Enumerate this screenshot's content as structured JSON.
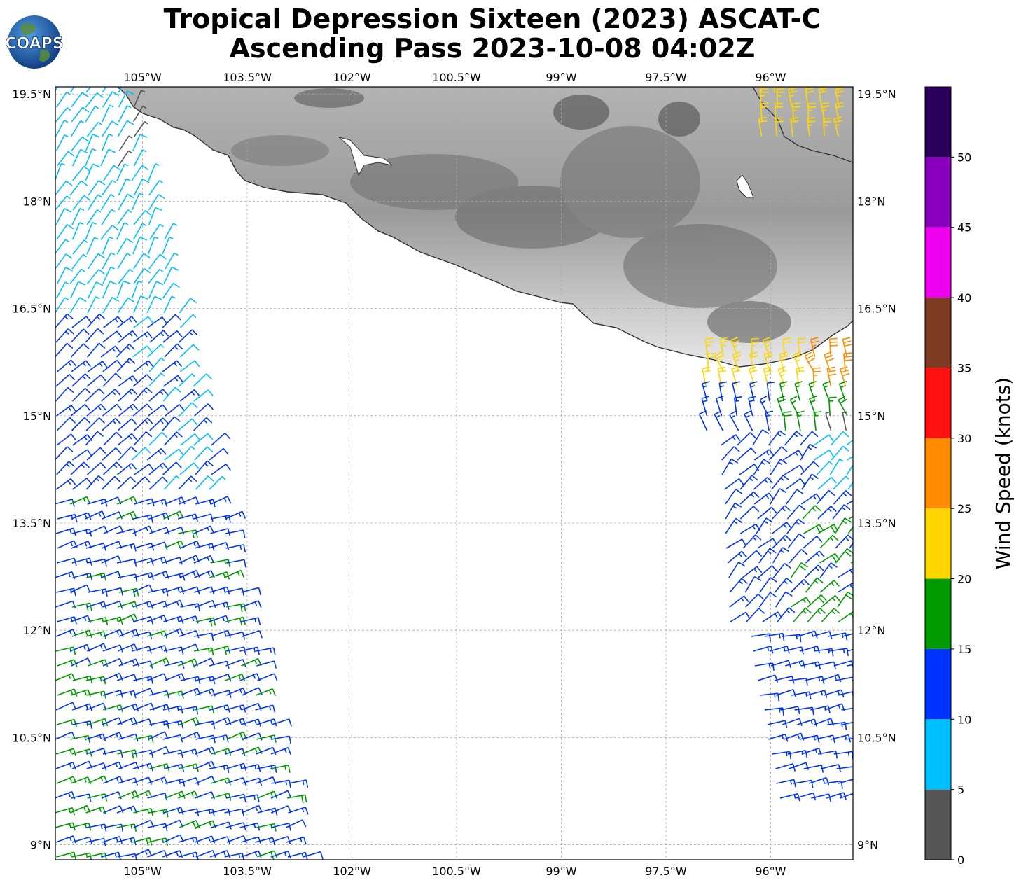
{
  "title": {
    "line1": "Tropical Depression Sixteen (2023) ASCAT-C",
    "line2": "Ascending Pass 2023-10-08 04:02Z"
  },
  "logo": {
    "text": "COAPS",
    "icon": "globe-logo-icon"
  },
  "map": {
    "lon_range": [
      -106.25,
      -94.82
    ],
    "lat_range": [
      8.79,
      19.6
    ],
    "lon_ticks": [
      {
        "value": -105,
        "label": "105°W"
      },
      {
        "value": -103.5,
        "label": "103.5°W"
      },
      {
        "value": -102,
        "label": "102°W"
      },
      {
        "value": -100.5,
        "label": "100.5°W"
      },
      {
        "value": -99,
        "label": "99°W"
      },
      {
        "value": -97.5,
        "label": "97.5°W"
      },
      {
        "value": -96,
        "label": "96°W"
      }
    ],
    "lat_ticks": [
      {
        "value": 19.5,
        "label": "19.5°N"
      },
      {
        "value": 18,
        "label": "18°N"
      },
      {
        "value": 16.5,
        "label": "16.5°N"
      },
      {
        "value": 15,
        "label": "15°N"
      },
      {
        "value": 13.5,
        "label": "13.5°N"
      },
      {
        "value": 12,
        "label": "12°N"
      },
      {
        "value": 10.5,
        "label": "10.5°N"
      },
      {
        "value": 9,
        "label": "9°N"
      }
    ],
    "grid": true,
    "land_color": "#d9d9d9",
    "coast_color": "#333333"
  },
  "colorbar": {
    "title": "Wind Speed (knots)",
    "ticks": [
      "0",
      "5",
      "10",
      "15",
      "20",
      "25",
      "30",
      "35",
      "40",
      "45",
      "50"
    ],
    "colors": [
      "#555555",
      "#00bfff",
      "#0033ff",
      "#009900",
      "#ffd700",
      "#ff8c00",
      "#ff1111",
      "#7f3a24",
      "#ee00ee",
      "#8800bb",
      "#2a005a"
    ]
  }
}
